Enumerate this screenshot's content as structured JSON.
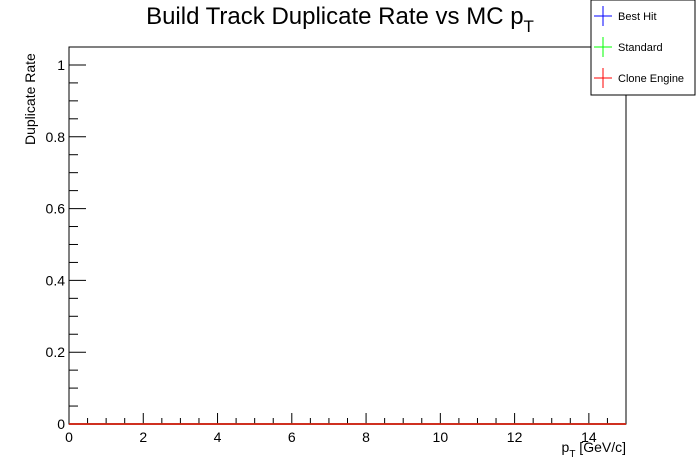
{
  "chart_data": {
    "type": "histogram",
    "title": {
      "text": "Build Track Duplicate Rate vs MC p",
      "sub": "T"
    },
    "xlabel": {
      "text": "p",
      "sub": "T",
      "after": " [GeV/c]"
    },
    "ylabel": "Duplicate Rate",
    "bins": [
      0,
      0.5,
      1,
      1.5,
      2,
      2.5,
      3,
      3.5,
      4,
      4.5,
      5,
      5.5,
      6,
      6.5,
      7,
      7.5,
      8,
      8.5,
      9,
      9.5,
      10,
      10.5,
      11,
      11.5,
      12,
      12.5,
      13,
      13.5,
      14,
      14.5,
      15
    ],
    "series": [
      {
        "name": "Best Hit",
        "color": "#0000ff",
        "values": [
          0,
          0,
          0,
          0,
          0,
          0,
          0,
          0,
          0,
          0,
          0,
          0,
          0,
          0,
          0,
          0,
          0,
          0,
          0,
          0,
          0,
          0,
          0,
          0,
          0,
          0,
          0,
          0,
          0,
          0
        ]
      },
      {
        "name": "Standard",
        "color": "#00ff00",
        "values": [
          0,
          0,
          0,
          0,
          0,
          0,
          0,
          0,
          0,
          0,
          0,
          0,
          0,
          0,
          0,
          0,
          0,
          0,
          0,
          0,
          0,
          0,
          0,
          0,
          0,
          0,
          0,
          0,
          0,
          0
        ]
      },
      {
        "name": "Clone Engine",
        "color": "#ff0000",
        "values": [
          0,
          0,
          0,
          0,
          0,
          0,
          0,
          0,
          0,
          0,
          0,
          0,
          0,
          0,
          0,
          0,
          0,
          0,
          0,
          0,
          0,
          0,
          0,
          0,
          0,
          0,
          0,
          0,
          0,
          0
        ]
      }
    ],
    "xlim": [
      0,
      15
    ],
    "ylim": [
      0,
      1.05
    ],
    "xticks": [
      0,
      2,
      4,
      6,
      8,
      10,
      12,
      14
    ],
    "yticks": [
      0,
      0.2,
      0.4,
      0.6,
      0.8,
      1
    ],
    "xminor": 4,
    "yminor": 4,
    "legend": "top-right"
  }
}
